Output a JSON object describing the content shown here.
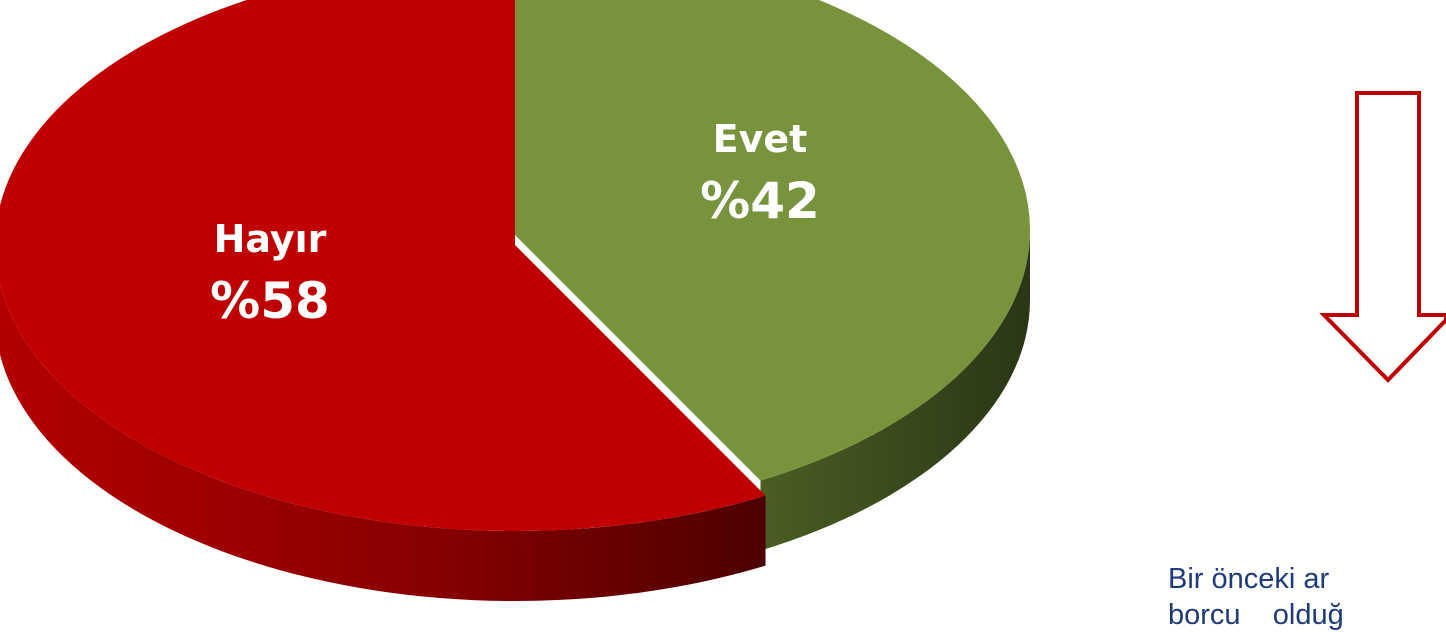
{
  "chart_data": {
    "type": "pie",
    "style": "3d-exploded",
    "slices": [
      {
        "label": "Evet",
        "value": 42,
        "value_label": "%42",
        "color": "#77933c"
      },
      {
        "label": "Hayır",
        "value": 58,
        "value_label": "%58",
        "color": "#c00000"
      }
    ],
    "caption_lines": [
      "Bir önceki ar",
      "borcu    olduğ"
    ],
    "arrow_color": "#c00000"
  }
}
